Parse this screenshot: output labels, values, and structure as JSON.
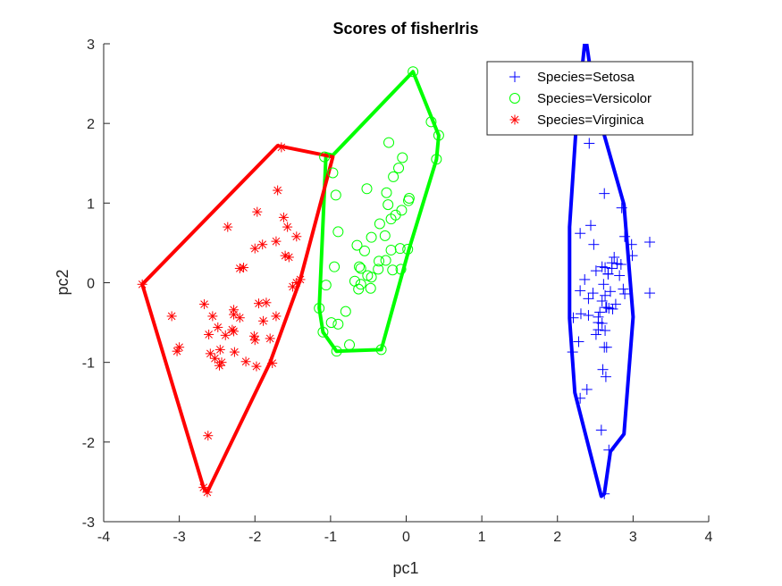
{
  "chart_data": {
    "type": "scatter",
    "title": "Scores of fisherIris",
    "xlabel": "pc1",
    "ylabel": "pc2",
    "xlim": [
      -4,
      4
    ],
    "ylim": [
      -3,
      3
    ],
    "xticks": [
      -4,
      -3,
      -2,
      -1,
      0,
      1,
      2,
      3,
      4
    ],
    "yticks": [
      -3,
      -2,
      -1,
      0,
      1,
      2,
      3
    ],
    "grid": false,
    "legend_position": "top-right",
    "series": [
      {
        "name": "Species=Setosa",
        "marker": "plus",
        "color": "#0000ff",
        "points": [
          [
            2.68,
            -0.32
          ],
          [
            2.72,
            0.18
          ],
          [
            2.89,
            -0.14
          ],
          [
            2.75,
            0.32
          ],
          [
            2.73,
            -0.33
          ],
          [
            2.28,
            -0.74
          ],
          [
            2.82,
            0.09
          ],
          [
            2.63,
            -0.16
          ],
          [
            2.89,
            0.58
          ],
          [
            2.67,
            0.11
          ],
          [
            2.51,
            -0.65
          ],
          [
            2.61,
            -0.02
          ],
          [
            2.79,
            0.24
          ],
          [
            3.22,
            0.51
          ],
          [
            2.64,
            -1.18
          ],
          [
            2.39,
            -1.34
          ],
          [
            2.62,
            -0.81
          ],
          [
            2.65,
            -0.31
          ],
          [
            2.2,
            -0.87
          ],
          [
            2.59,
            -0.51
          ],
          [
            2.31,
            -0.39
          ],
          [
            2.54,
            -0.43
          ],
          [
            3.22,
            -0.13
          ],
          [
            2.3,
            -0.1
          ],
          [
            2.36,
            0.04
          ],
          [
            2.51,
            0.15
          ],
          [
            2.47,
            -0.13
          ],
          [
            2.56,
            -0.37
          ],
          [
            2.64,
            -0.31
          ],
          [
            2.63,
            0.19
          ],
          [
            2.59,
            0.2
          ],
          [
            2.41,
            -0.41
          ],
          [
            2.65,
            -0.81
          ],
          [
            2.6,
            -1.09
          ],
          [
            2.67,
            0.11
          ],
          [
            2.87,
            -0.08
          ],
          [
            2.63,
            -0.6
          ],
          [
            2.67,
            0.11
          ],
          [
            2.98,
            0.48
          ],
          [
            2.59,
            -0.23
          ],
          [
            2.77,
            -0.27
          ],
          [
            2.85,
            0.94
          ],
          [
            2.99,
            0.34
          ],
          [
            2.41,
            -0.2
          ],
          [
            2.21,
            -0.44
          ],
          [
            2.72,
            0.25
          ],
          [
            2.54,
            -0.5
          ],
          [
            2.84,
            0.23
          ],
          [
            2.54,
            -0.59
          ],
          [
            2.7,
            -0.11
          ],
          [
            2.55,
            2.0
          ],
          [
            2.62,
            -2.65
          ],
          [
            2.42,
            1.75
          ],
          [
            2.58,
            -1.85
          ],
          [
            2.3,
            -1.45
          ],
          [
            2.68,
            -2.1
          ],
          [
            2.62,
            1.12
          ],
          [
            2.44,
            0.72
          ],
          [
            2.48,
            0.48
          ],
          [
            2.3,
            0.62
          ]
        ]
      },
      {
        "name": "Species=Versicolor",
        "marker": "circle",
        "color": "#00ff00",
        "points": [
          [
            0.09,
            2.65
          ],
          [
            -0.23,
            1.76
          ],
          [
            -0.05,
            1.57
          ],
          [
            0.4,
            1.55
          ],
          [
            0.43,
            1.85
          ],
          [
            0.33,
            2.02
          ],
          [
            -0.52,
            1.18
          ],
          [
            -0.97,
            1.38
          ],
          [
            -1.08,
            1.58
          ],
          [
            -0.93,
            1.1
          ],
          [
            -0.1,
            1.44
          ],
          [
            -0.17,
            1.33
          ],
          [
            -0.26,
            1.13
          ],
          [
            0.03,
            1.03
          ],
          [
            0.04,
            1.06
          ],
          [
            -0.06,
            0.91
          ],
          [
            -0.24,
            0.98
          ],
          [
            -0.2,
            0.8
          ],
          [
            -0.14,
            0.85
          ],
          [
            -0.35,
            0.74
          ],
          [
            -0.9,
            0.64
          ],
          [
            -0.28,
            0.59
          ],
          [
            -0.46,
            0.57
          ],
          [
            -0.65,
            0.47
          ],
          [
            -0.55,
            0.4
          ],
          [
            -0.2,
            0.41
          ],
          [
            -0.08,
            0.43
          ],
          [
            0.02,
            0.42
          ],
          [
            -0.36,
            0.27
          ],
          [
            -0.27,
            0.28
          ],
          [
            -0.95,
            0.2
          ],
          [
            -0.6,
            0.18
          ],
          [
            -0.62,
            0.2
          ],
          [
            -0.37,
            0.17
          ],
          [
            -0.07,
            0.17
          ],
          [
            -0.18,
            0.16
          ],
          [
            -0.51,
            0.09
          ],
          [
            -0.46,
            0.07
          ],
          [
            -0.68,
            0.02
          ],
          [
            -0.6,
            -0.02
          ],
          [
            -0.47,
            -0.07
          ],
          [
            -0.63,
            -0.08
          ],
          [
            -1.06,
            -0.03
          ],
          [
            -0.8,
            -0.36
          ],
          [
            -0.9,
            -0.52
          ],
          [
            -0.99,
            -0.5
          ],
          [
            -1.1,
            -0.62
          ],
          [
            -1.15,
            -0.32
          ],
          [
            -0.75,
            -0.78
          ],
          [
            -0.92,
            -0.86
          ],
          [
            -0.33,
            -0.84
          ]
        ]
      },
      {
        "name": "Species=Virginica",
        "marker": "star",
        "color": "#ff0000",
        "points": [
          [
            -1.65,
            1.7
          ],
          [
            -1.7,
            1.16
          ],
          [
            -1.62,
            0.82
          ],
          [
            -1.97,
            0.89
          ],
          [
            -2.36,
            0.7
          ],
          [
            -1.57,
            0.7
          ],
          [
            -1.45,
            0.58
          ],
          [
            -1.72,
            0.52
          ],
          [
            -1.9,
            0.48
          ],
          [
            -2.0,
            0.43
          ],
          [
            -1.6,
            0.34
          ],
          [
            -1.55,
            0.32
          ],
          [
            -2.15,
            0.19
          ],
          [
            -2.2,
            0.18
          ],
          [
            -1.4,
            0.04
          ],
          [
            -1.45,
            0.0
          ],
          [
            -1.5,
            -0.05
          ],
          [
            -3.49,
            -0.02
          ],
          [
            -1.85,
            -0.25
          ],
          [
            -1.95,
            -0.26
          ],
          [
            -2.28,
            -0.34
          ],
          [
            -2.28,
            -0.4
          ],
          [
            -2.67,
            -0.27
          ],
          [
            -3.1,
            -0.42
          ],
          [
            -2.2,
            -0.44
          ],
          [
            -2.56,
            -0.42
          ],
          [
            -1.72,
            -0.42
          ],
          [
            -1.89,
            -0.48
          ],
          [
            -2.49,
            -0.56
          ],
          [
            -2.3,
            -0.59
          ],
          [
            -2.39,
            -0.66
          ],
          [
            -2.28,
            -0.61
          ],
          [
            -2.61,
            -0.65
          ],
          [
            -2.01,
            -0.67
          ],
          [
            -1.8,
            -0.7
          ],
          [
            -2.46,
            -0.84
          ],
          [
            -2.59,
            -0.89
          ],
          [
            -2.53,
            -0.95
          ],
          [
            -3.0,
            -0.81
          ],
          [
            -3.03,
            -0.86
          ],
          [
            -2.27,
            -0.87
          ],
          [
            -2.44,
            -1.0
          ],
          [
            -2.47,
            -1.04
          ],
          [
            -2.12,
            -0.99
          ],
          [
            -1.98,
            -1.05
          ],
          [
            -1.77,
            -1.01
          ],
          [
            -2.62,
            -1.92
          ],
          [
            -2.68,
            -2.57
          ],
          [
            -2.63,
            -2.63
          ],
          [
            -2.0,
            -0.72
          ]
        ]
      }
    ],
    "hulls": [
      {
        "series": "Species=Setosa",
        "color": "#0000ff",
        "points": [
          [
            2.37,
            3.1
          ],
          [
            2.5,
            2.25
          ],
          [
            2.88,
            0.98
          ],
          [
            3.0,
            -0.43
          ],
          [
            2.88,
            -1.9
          ],
          [
            2.7,
            -2.12
          ],
          [
            2.62,
            -2.65
          ],
          [
            2.58,
            -2.68
          ],
          [
            2.23,
            -1.38
          ],
          [
            2.16,
            -0.45
          ],
          [
            2.16,
            0.7
          ],
          [
            2.25,
            2.0
          ]
        ]
      },
      {
        "series": "Species=Versicolor",
        "color": "#00ff00",
        "points": [
          [
            0.09,
            2.65
          ],
          [
            0.43,
            1.85
          ],
          [
            0.4,
            1.55
          ],
          [
            0.04,
            0.43
          ],
          [
            -0.33,
            -0.84
          ],
          [
            -0.92,
            -0.86
          ],
          [
            -1.1,
            -0.62
          ],
          [
            -1.15,
            -0.32
          ],
          [
            -1.06,
            1.62
          ],
          [
            -0.97,
            1.6
          ]
        ]
      },
      {
        "series": "Species=Virginica",
        "color": "#ff0000",
        "points": [
          [
            -1.7,
            1.72
          ],
          [
            -0.97,
            1.58
          ],
          [
            -1.4,
            0.04
          ],
          [
            -1.8,
            -1.0
          ],
          [
            -2.63,
            -2.63
          ],
          [
            -2.68,
            -2.57
          ],
          [
            -3.49,
            -0.02
          ]
        ]
      }
    ]
  }
}
